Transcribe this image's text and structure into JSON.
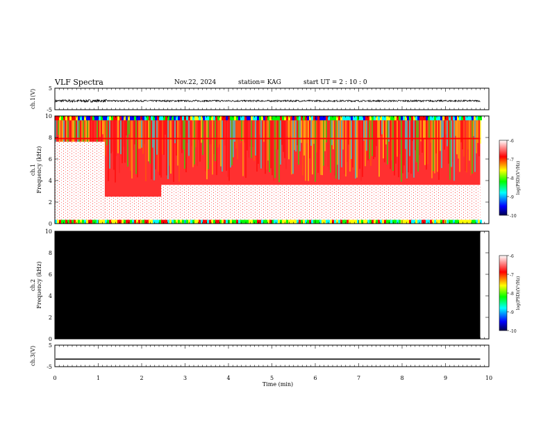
{
  "header": {
    "title": "VLF Spectra",
    "date": "Nov.22, 2024",
    "station": "station= KAG",
    "start": "start  UT =   2 : 10 : 0"
  },
  "chart_data": [
    {
      "type": "line",
      "name": "ch1",
      "ylabel": "ch.1(V)",
      "ylim": [
        -5,
        5
      ],
      "y_ticks": [
        "5",
        "-5"
      ],
      "baseline": -0.9,
      "noise_amplitude": 0.4,
      "grid": false
    },
    {
      "type": "heatmap",
      "name": "ch1-spectrogram",
      "ylabel_lines": [
        "ch.1",
        "Frequency  (kHz)"
      ],
      "ylim": [
        0,
        10
      ],
      "y_ticks": [
        "0",
        "2",
        "4",
        "6",
        "8",
        "10"
      ],
      "colorbar": {
        "label": "log(PSD)(V²/Hz)",
        "range": [
          -10,
          -6
        ],
        "ticks": [
          "-6",
          "-7",
          "-8",
          "-9",
          "-10"
        ],
        "colors": [
          "#000080",
          "#0000ff",
          "#00ffff",
          "#00ff00",
          "#ffff00",
          "#ff0000",
          "#ffffff"
        ]
      },
      "events": [
        {
          "t_start": 0,
          "t_end": 1.15,
          "white_below_khz": 7.6,
          "note": "strong broadband emission"
        },
        {
          "t_start": 1.15,
          "t_end": 2.45,
          "white_below_khz": 2.5
        },
        {
          "t_start": 2.45,
          "t_end": 9.8,
          "white_below_khz": 3.6
        },
        {
          "t_start": 7.4,
          "t_end": 7.55,
          "white_below_khz": 0.3
        }
      ],
      "data_end_min": 9.8
    },
    {
      "type": "heatmap",
      "name": "ch2-spectrogram",
      "ylabel_lines": [
        "ch.2",
        "Frequency  (kHz)"
      ],
      "ylim": [
        0,
        10
      ],
      "y_ticks": [
        "0",
        "2",
        "4",
        "6",
        "8",
        "10"
      ],
      "fill": "#000000",
      "colorbar": {
        "label": "log(PSD)(V²/Hz)",
        "range": [
          -10,
          -6
        ],
        "ticks": [
          "-6",
          "-7",
          "-8",
          "-9",
          "-10"
        ]
      },
      "data_end_min": 9.8
    },
    {
      "type": "line",
      "name": "ch3",
      "ylabel": "ch.3(V)",
      "ylim": [
        -5,
        5
      ],
      "y_ticks": [
        "5",
        "-5"
      ],
      "constant_value": -1.5,
      "grid": false
    }
  ],
  "x_axis": {
    "label": "Time  (min)",
    "range": [
      0,
      10
    ],
    "ticks": [
      "0",
      "1",
      "2",
      "3",
      "4",
      "5",
      "6",
      "7",
      "8",
      "9",
      "10"
    ]
  }
}
